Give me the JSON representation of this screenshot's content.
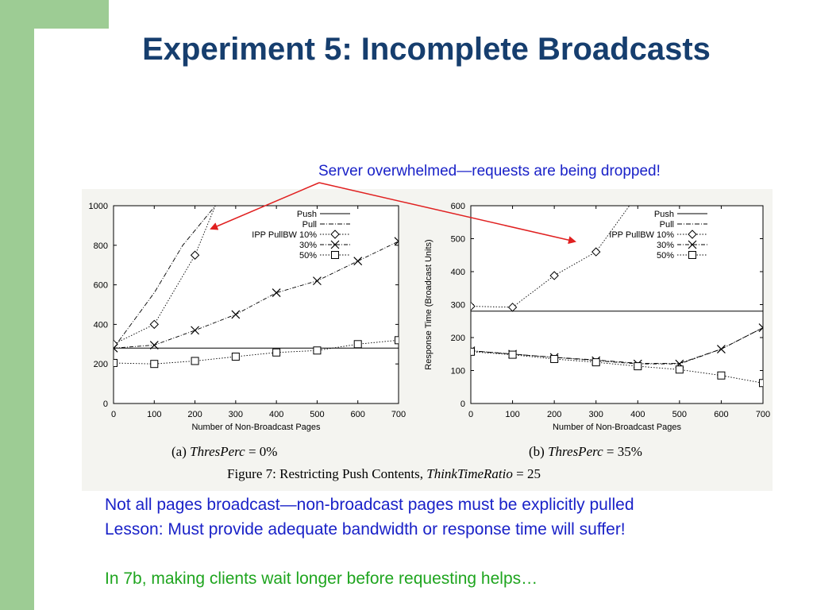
{
  "slide": {
    "title": "Experiment 5: Incomplete Broadcasts",
    "annotation": "Server overwhelmed—requests are being dropped!",
    "body_lines": [
      "Not all pages broadcast—non-broadcast pages must be explicitly pulled",
      "Lesson:  Must provide adequate bandwidth or response time will suffer!"
    ],
    "followup": "In 7b, making clients wait longer before requesting helps…",
    "colors": {
      "sidebar": "#9dcc94",
      "title": "#163e6e",
      "body": "#1a22c8",
      "followup": "#1fa51f",
      "arrow": "#e02020"
    }
  },
  "figure": {
    "caption_prefix": "Figure 7:  Restricting Push Contents, ",
    "caption_var": "ThinkTimeRatio",
    "caption_suffix": " = 25"
  },
  "chart_data": [
    {
      "type": "line",
      "panel_caption_prefix": "(a) ",
      "panel_caption_var": "ThresPerc",
      "panel_caption_suffix": " = 0%",
      "xlabel": "Number of Non-Broadcast Pages",
      "ylabel": "",
      "xlim": [
        0,
        700
      ],
      "ylim": [
        0,
        1000
      ],
      "xticks": [
        0,
        100,
        200,
        300,
        400,
        500,
        600,
        700
      ],
      "yticks": [
        0,
        200,
        400,
        600,
        800,
        1000
      ],
      "legend_position": "top-right",
      "series": [
        {
          "name": "Push",
          "marker": "none",
          "dash": "solid",
          "points": [
            [
              0,
              280
            ],
            [
              700,
              280
            ]
          ]
        },
        {
          "name": "Pull",
          "marker": "none",
          "dash": "dotdash",
          "points": [
            [
              0,
              280
            ],
            [
              100,
              560
            ],
            [
              170,
              800
            ],
            [
              250,
              1000
            ]
          ]
        },
        {
          "name": "IPP PullBW 10%",
          "marker": "diamond",
          "dash": "dotted",
          "points": [
            [
              0,
              300
            ],
            [
              100,
              400
            ],
            [
              200,
              750
            ],
            [
              250,
              1000
            ]
          ]
        },
        {
          "name": "30%",
          "marker": "x",
          "dash": "dashdot",
          "points": [
            [
              0,
              280
            ],
            [
              100,
              295
            ],
            [
              200,
              370
            ],
            [
              300,
              450
            ],
            [
              400,
              560
            ],
            [
              500,
              620
            ],
            [
              600,
              720
            ],
            [
              700,
              820
            ]
          ]
        },
        {
          "name": "50%",
          "marker": "square",
          "dash": "dotted",
          "points": [
            [
              0,
              205
            ],
            [
              100,
              200
            ],
            [
              200,
              215
            ],
            [
              300,
              237
            ],
            [
              400,
              258
            ],
            [
              500,
              268
            ],
            [
              600,
              300
            ],
            [
              700,
              320
            ]
          ]
        }
      ]
    },
    {
      "type": "line",
      "panel_caption_prefix": "(b) ",
      "panel_caption_var": "ThresPerc",
      "panel_caption_suffix": " = 35%",
      "xlabel": "Number of Non-Broadcast Pages",
      "ylabel": "Response Time (Broadcast Units)",
      "xlim": [
        0,
        700
      ],
      "ylim": [
        0,
        600
      ],
      "xticks": [
        0,
        100,
        200,
        300,
        400,
        500,
        600,
        700
      ],
      "yticks": [
        0,
        100,
        200,
        300,
        400,
        500,
        600
      ],
      "legend_position": "top-right",
      "series": [
        {
          "name": "Push",
          "marker": "none",
          "dash": "solid",
          "points": [
            [
              0,
              280
            ],
            [
              700,
              280
            ]
          ]
        },
        {
          "name": "Pull",
          "marker": "none",
          "dash": "dotdash",
          "points": [
            [
              0,
              160
            ],
            [
              100,
              150
            ],
            [
              200,
              140
            ],
            [
              300,
              132
            ],
            [
              400,
              122
            ],
            [
              500,
              122
            ],
            [
              600,
              165
            ],
            [
              700,
              230
            ]
          ]
        },
        {
          "name": "IPP PullBW 10%",
          "marker": "diamond",
          "dash": "dotted",
          "points": [
            [
              0,
              295
            ],
            [
              100,
              292
            ],
            [
              200,
              388
            ],
            [
              300,
              460
            ],
            [
              380,
              600
            ]
          ]
        },
        {
          "name": "30%",
          "marker": "x",
          "dash": "dashdot",
          "points": [
            [
              0,
              160
            ],
            [
              100,
              150
            ],
            [
              200,
              140
            ],
            [
              300,
              130
            ],
            [
              400,
              120
            ],
            [
              500,
              120
            ],
            [
              600,
              165
            ],
            [
              700,
              230
            ]
          ]
        },
        {
          "name": "50%",
          "marker": "square",
          "dash": "dotted",
          "points": [
            [
              0,
              157
            ],
            [
              100,
              148
            ],
            [
              200,
              135
            ],
            [
              300,
              125
            ],
            [
              400,
              113
            ],
            [
              500,
              103
            ],
            [
              600,
              85
            ],
            [
              700,
              62
            ]
          ]
        }
      ]
    }
  ]
}
